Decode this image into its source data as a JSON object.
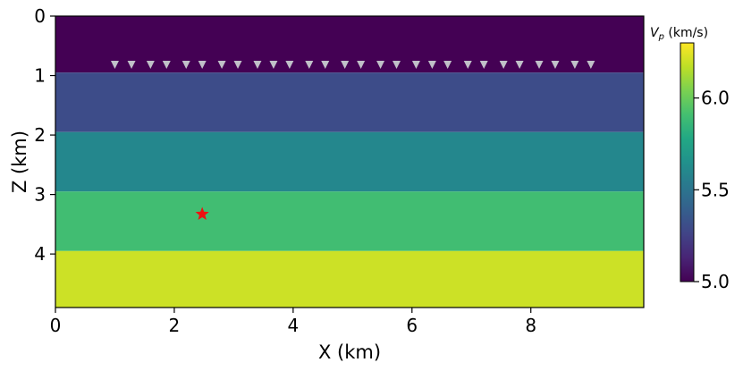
{
  "chart_data": {
    "type": "heatmap",
    "xlabel": "X (km)",
    "ylabel": "Z (km)",
    "xlim": [
      0,
      9.9
    ],
    "ylim": [
      4.9,
      0
    ],
    "x_ticks": [
      "0",
      "2",
      "4",
      "6",
      "8"
    ],
    "y_ticks": [
      "0",
      "1",
      "2",
      "3",
      "4"
    ],
    "x_tick_values": [
      0,
      2,
      4,
      6,
      8
    ],
    "y_tick_values": [
      0,
      1,
      2,
      3,
      4
    ],
    "layers": [
      {
        "z_top": 0.0,
        "z_bottom": 0.95,
        "vp": 5.0
      },
      {
        "z_top": 0.95,
        "z_bottom": 1.95,
        "vp": 5.3
      },
      {
        "z_top": 1.95,
        "z_bottom": 2.95,
        "vp": 5.6
      },
      {
        "z_top": 2.95,
        "z_bottom": 3.95,
        "vp": 5.9
      },
      {
        "z_top": 3.95,
        "z_bottom": 4.9,
        "vp": 6.2
      }
    ],
    "receivers": {
      "z": 0.82,
      "x": [
        1.0,
        1.28,
        1.6,
        1.87,
        2.2,
        2.47,
        2.8,
        3.07,
        3.4,
        3.67,
        3.94,
        4.27,
        4.54,
        4.87,
        5.14,
        5.47,
        5.74,
        6.07,
        6.34,
        6.6,
        6.94,
        7.21,
        7.54,
        7.81,
        8.14,
        8.41,
        8.74,
        9.01
      ],
      "color": "#c0c0c8"
    },
    "source": {
      "x": 2.47,
      "z": 3.33,
      "color": "#ee1111"
    },
    "colorbar": {
      "title": "V_p (km/s)",
      "title_main": "V",
      "title_sub": "p",
      "title_rest": " (km/s)",
      "min": 5.0,
      "max": 6.3,
      "ticks": [
        "5.0",
        "5.5",
        "6.0"
      ],
      "tick_values": [
        5.0,
        5.5,
        6.0
      ],
      "colormap": "viridis"
    }
  }
}
